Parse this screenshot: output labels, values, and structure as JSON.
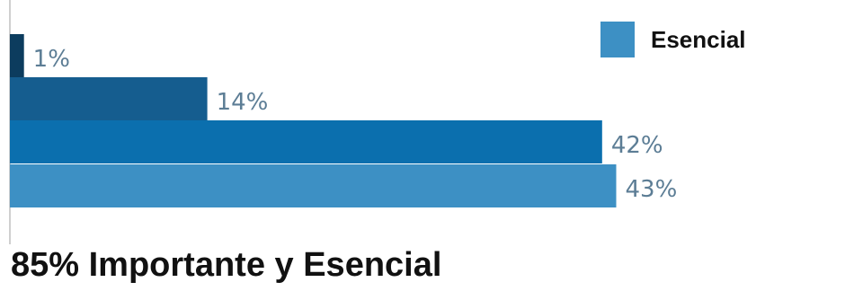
{
  "chart_data": {
    "type": "bar",
    "orientation": "horizontal",
    "values": [
      1,
      14,
      42,
      43
    ],
    "value_labels": [
      "1%",
      "14%",
      "42%",
      "43%"
    ],
    "colors": [
      "#0c3c5e",
      "#155d8f",
      "#0b6fae",
      "#3d90c4"
    ],
    "legend": [
      {
        "label": "Esencial",
        "color": "#3d90c4"
      }
    ],
    "legend_position": "top-right",
    "xlim": [
      0,
      45
    ],
    "grid": false
  },
  "footer": {
    "title": "85% Importante y Esencial"
  }
}
